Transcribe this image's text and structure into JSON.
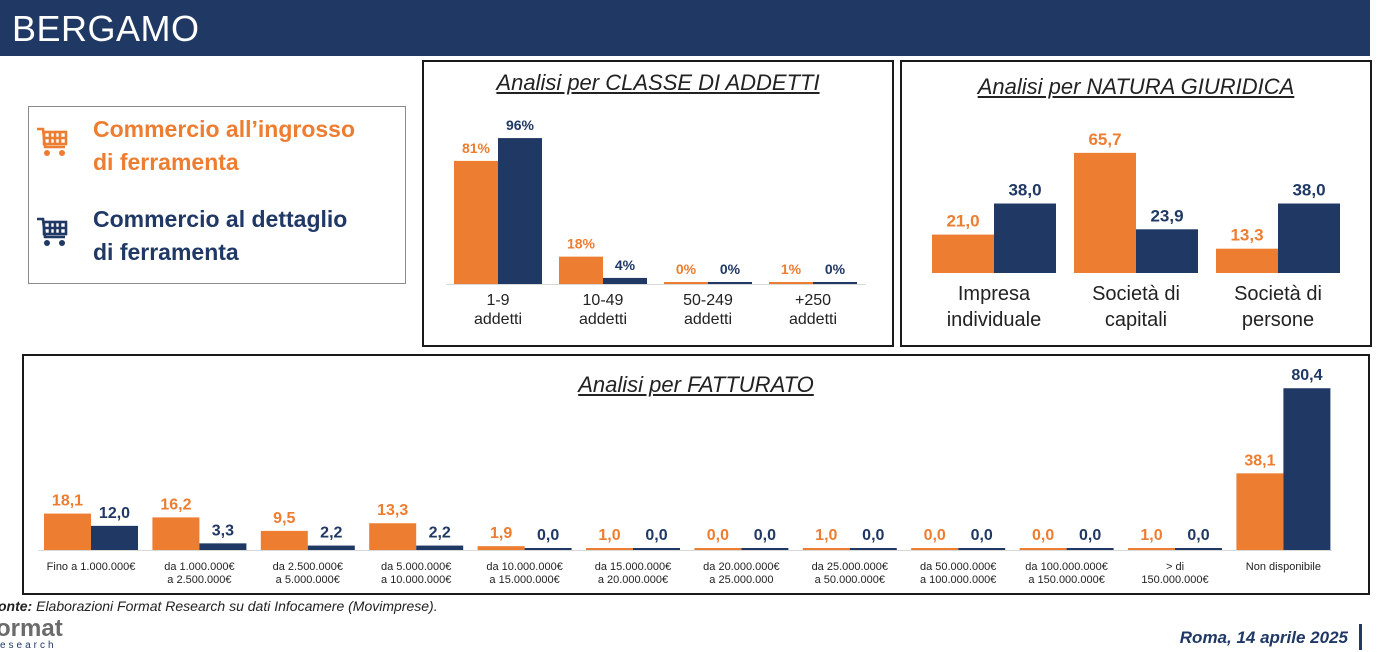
{
  "header": {
    "title": "BERGAMO"
  },
  "colors": {
    "orange": "#ed7d31",
    "navy": "#203864",
    "header_bg": "#203864"
  },
  "legend": {
    "items": [
      {
        "label_line1": "Commercio all’ingrosso",
        "label_line2": "di ferramenta",
        "icon": "cart-icon",
        "color": "#ed7d31"
      },
      {
        "label_line1": "Commercio al dettaglio",
        "label_line2": "di ferramenta",
        "icon": "cart-icon",
        "color": "#203864"
      }
    ]
  },
  "panels": {
    "addetti_title": "Analisi per CLASSE DI ADDETTI",
    "natura_title": "Analisi per NATURA GIURIDICA",
    "fatturato_title": "Analisi per FATTURATO"
  },
  "chart_data": [
    {
      "id": "addetti",
      "type": "bar",
      "title": "Analisi per CLASSE DI ADDETTI",
      "categories": [
        [
          "1-9",
          "addetti"
        ],
        [
          "10-49",
          "addetti"
        ],
        [
          "50-249",
          "addetti"
        ],
        [
          "+250",
          "addetti"
        ]
      ],
      "series": [
        {
          "color": "#ed7d31",
          "values": [
            81,
            18,
            0,
            1
          ],
          "labels": [
            "81%",
            "18%",
            "0%",
            "1%"
          ]
        },
        {
          "color": "#203864",
          "values": [
            96,
            4,
            0,
            0
          ],
          "labels": [
            "96%",
            "4%",
            "0%",
            "0%"
          ]
        }
      ],
      "ylim": [
        0,
        100
      ]
    },
    {
      "id": "natura",
      "type": "bar",
      "title": "Analisi per NATURA GIURIDICA",
      "categories": [
        [
          "Impresa",
          "individuale"
        ],
        [
          "Società di",
          "capitali"
        ],
        [
          "Società di",
          "persone"
        ]
      ],
      "series": [
        {
          "color": "#ed7d31",
          "values": [
            21.0,
            65.7,
            13.3
          ],
          "labels": [
            "21,0",
            "65,7",
            "13,3"
          ]
        },
        {
          "color": "#203864",
          "values": [
            38.0,
            23.9,
            38.0
          ],
          "labels": [
            "38,0",
            "23,9",
            "38,0"
          ]
        }
      ],
      "ylim": [
        0,
        70
      ]
    },
    {
      "id": "fatturato",
      "type": "bar",
      "title": "Analisi per FATTURATO",
      "categories": [
        [
          "Fino a 1.000.000€"
        ],
        [
          "da 1.000.000€",
          "a 2.500.000€"
        ],
        [
          "da 2.500.000€",
          "a 5.000.000€"
        ],
        [
          "da 5.000.000€",
          "a 10.000.000€"
        ],
        [
          "da 10.000.000€",
          "a 15.000.000€"
        ],
        [
          "da 15.000.000€",
          "a 20.000.000€"
        ],
        [
          "da 20.000.000€",
          "a 25.000.000"
        ],
        [
          "da 25.000.000€",
          "a 50.000.000€"
        ],
        [
          "da 50.000.000€",
          "a 100.000.000€"
        ],
        [
          "da 100.000.000€",
          "a 150.000.000€"
        ],
        [
          "> di",
          "150.000.000€"
        ],
        [
          "Non disponibile"
        ]
      ],
      "series": [
        {
          "color": "#ed7d31",
          "values": [
            18.1,
            16.2,
            9.5,
            13.3,
            1.9,
            1.0,
            0.0,
            1.0,
            0.0,
            0.0,
            1.0,
            38.1
          ],
          "labels": [
            "18,1",
            "16,2",
            "9,5",
            "13,3",
            "1,9",
            "1,0",
            "0,0",
            "1,0",
            "0,0",
            "0,0",
            "1,0",
            "38,1"
          ]
        },
        {
          "color": "#203864",
          "values": [
            12.0,
            3.3,
            2.2,
            2.2,
            0.0,
            0.0,
            0.0,
            0.0,
            0.0,
            0.0,
            0.0,
            80.4
          ],
          "labels": [
            "12,0",
            "3,3",
            "2,2",
            "2,2",
            "0,0",
            "0,0",
            "0,0",
            "0,0",
            "0,0",
            "0,0",
            "0,0",
            "80,4"
          ]
        }
      ],
      "ylim": [
        0,
        84
      ]
    }
  ],
  "footer": {
    "source_bold": "onte:",
    "source_text": " Elaborazioni Format Research su dati Infocamere (Movimprese).",
    "logo_main": "ormat",
    "logo_sub": "esearch",
    "date": "Roma, 14 aprile 2025"
  }
}
